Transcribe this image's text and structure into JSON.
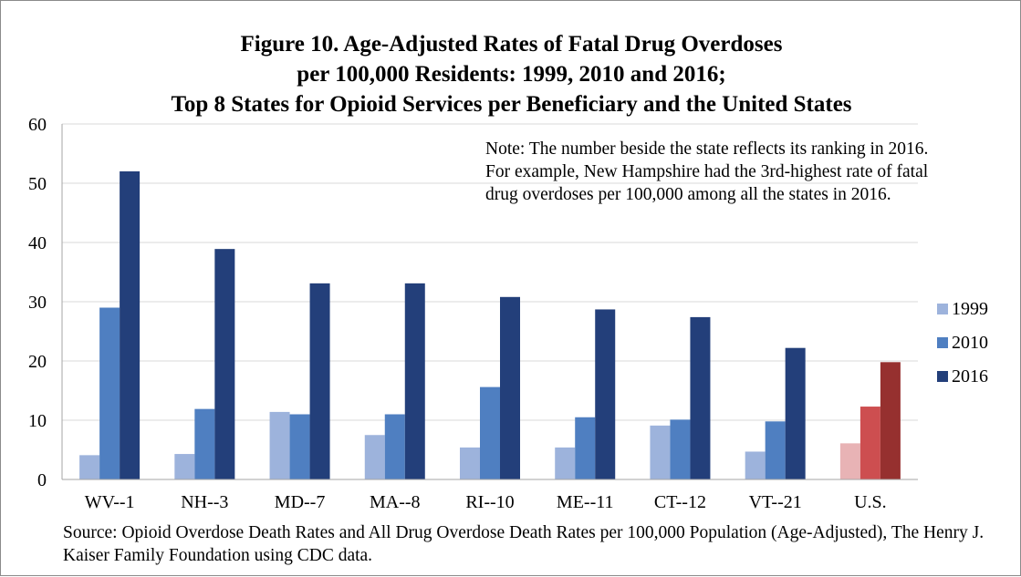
{
  "chart_data": {
    "type": "bar",
    "title_lines": [
      "Figure 10. Age-Adjusted Rates of Fatal Drug Overdoses",
      "per 100,000 Residents: 1999, 2010 and 2016;",
      "Top 8 States for Opioid Services per Beneficiary and the United States"
    ],
    "categories": [
      "WV--1",
      "NH--3",
      "MD--7",
      "MA--8",
      "RI--10",
      "ME--11",
      "CT--12",
      "VT--21",
      "U.S."
    ],
    "series": [
      {
        "name": "1999",
        "color": "#9db3dc",
        "values": [
          4.1,
          4.3,
          11.4,
          7.5,
          5.4,
          5.4,
          9.1,
          4.7,
          6.1
        ]
      },
      {
        "name": "2010",
        "color": "#4f7fc1",
        "values": [
          29.0,
          11.9,
          11.0,
          11.0,
          15.6,
          10.5,
          10.1,
          9.8,
          12.3
        ]
      },
      {
        "name": "2016",
        "color": "#233f7a",
        "values": [
          52.0,
          38.9,
          33.1,
          33.1,
          30.8,
          28.7,
          27.4,
          22.2,
          19.8
        ]
      }
    ],
    "us_colors": [
      "#e8b3b5",
      "#cd4e50",
      "#96302f"
    ],
    "ylim": [
      0,
      60
    ],
    "yticks": [
      0,
      10,
      20,
      30,
      40,
      50,
      60
    ],
    "grid": true,
    "legend": "right",
    "note_text": "Note: The number beside the state reflects its ranking in 2016. For example, New Hampshire had the 3rd-highest rate of fatal drug overdoses per 100,000 among all the states in 2016.",
    "source_text": "Source: Opioid Overdose Death Rates and All Drug Overdose Death Rates per 100,000 Population (Age-Adjusted), The Henry J. Kaiser Family Foundation using CDC data."
  }
}
